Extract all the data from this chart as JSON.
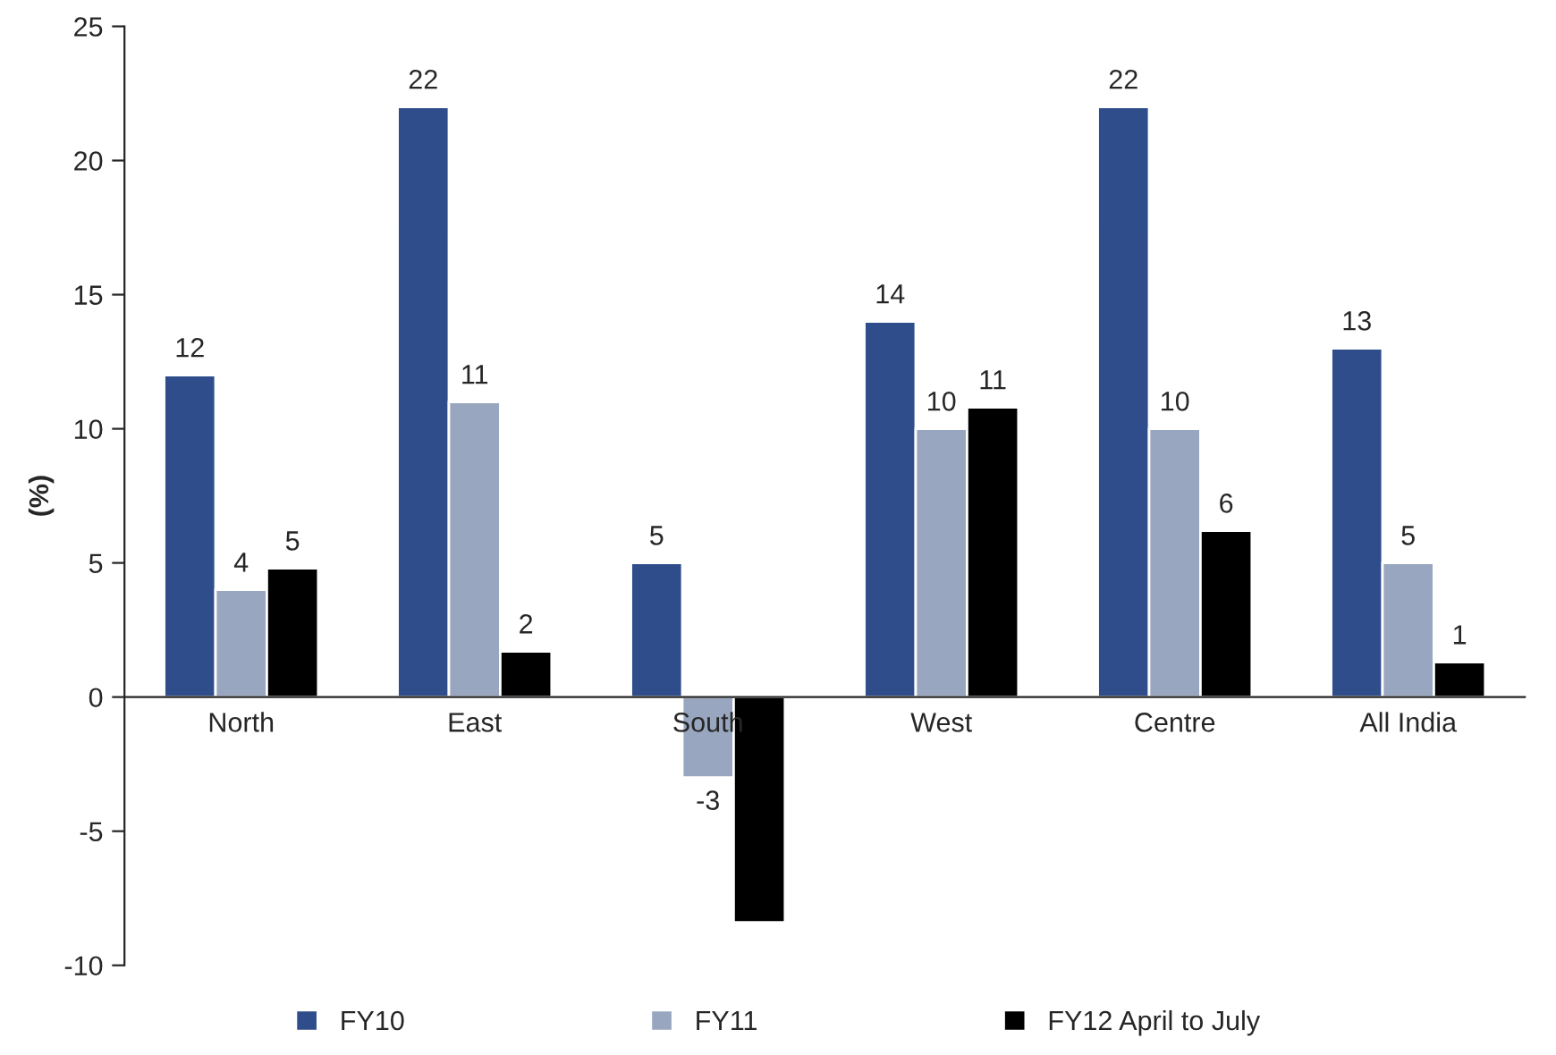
{
  "chart_data": {
    "type": "bar",
    "ylabel": "(%)",
    "categories": [
      "North",
      "East",
      "South",
      "West",
      "Centre",
      "All India"
    ],
    "series": [
      {
        "name": "FY10",
        "color": "#2e4d8a",
        "values": [
          12,
          22,
          5,
          14,
          22,
          13
        ],
        "value_labels": [
          "12",
          "22",
          "5",
          "14",
          "22",
          "13"
        ]
      },
      {
        "name": "FY11",
        "color": "#98a6c0",
        "values": [
          4,
          11,
          -3,
          10,
          10,
          5
        ],
        "value_labels": [
          "4",
          "11",
          "-3",
          "10",
          "10",
          "5"
        ]
      },
      {
        "name": "FY12 April to July",
        "color": "#000000",
        "values": [
          4.8,
          1.7,
          -8.4,
          10.8,
          6.2,
          1.3
        ],
        "value_labels": [
          "5",
          "2",
          null,
          "11",
          "6",
          "1"
        ]
      }
    ],
    "ylim": [
      -10,
      25
    ],
    "yticks": [
      -10,
      -5,
      0,
      5,
      10,
      15,
      20,
      25
    ],
    "grid": false,
    "legend": "bottom"
  }
}
